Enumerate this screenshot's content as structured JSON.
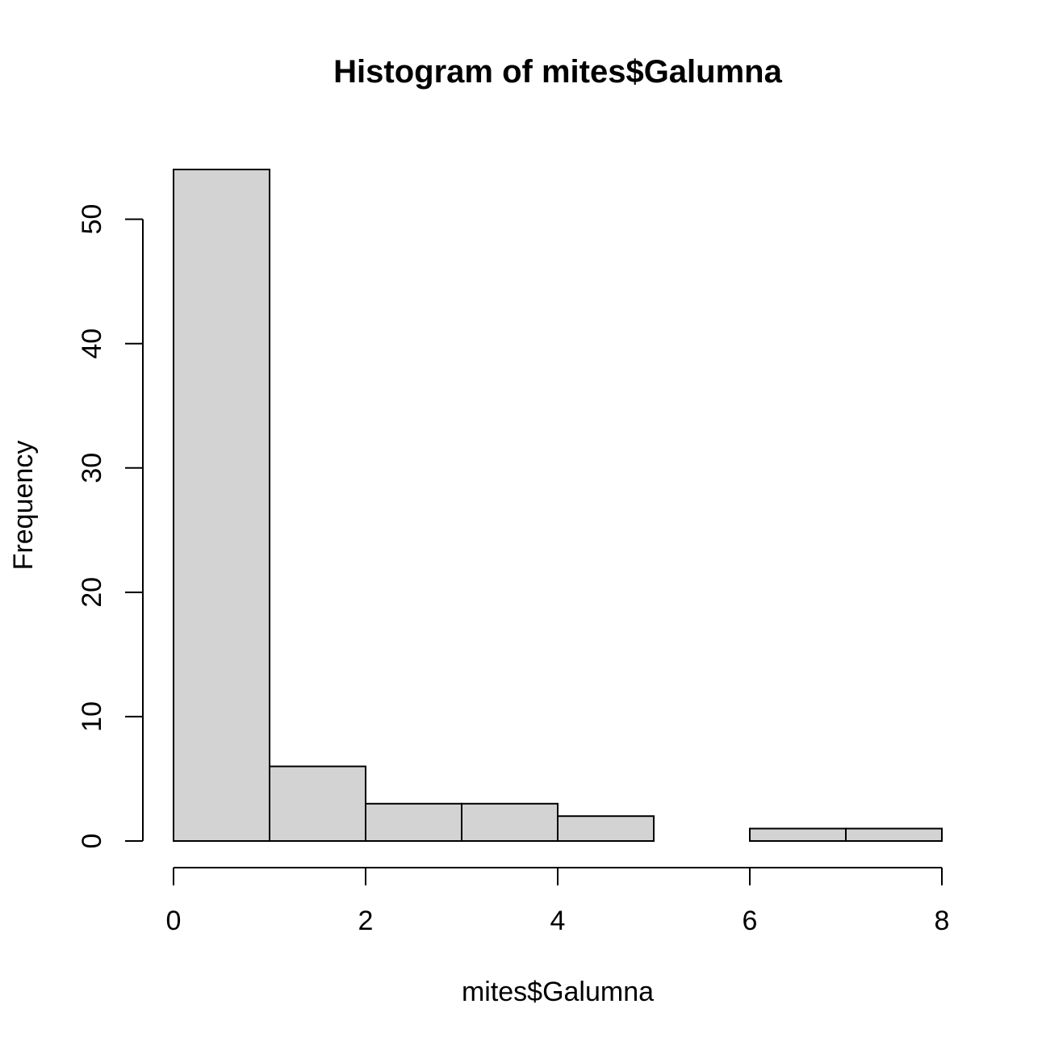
{
  "chart_data": {
    "type": "bar",
    "title": "Histogram of mites$Galumna",
    "xlabel": "mites$Galumna",
    "ylabel": "Frequency",
    "bins": [
      {
        "start": 0,
        "end": 1,
        "count": 54
      },
      {
        "start": 1,
        "end": 2,
        "count": 6
      },
      {
        "start": 2,
        "end": 3,
        "count": 3
      },
      {
        "start": 3,
        "end": 4,
        "count": 3
      },
      {
        "start": 4,
        "end": 5,
        "count": 2
      },
      {
        "start": 5,
        "end": 6,
        "count": 0
      },
      {
        "start": 6,
        "end": 7,
        "count": 1
      },
      {
        "start": 7,
        "end": 8,
        "count": 1
      }
    ],
    "xlim": [
      0,
      8
    ],
    "ylim": [
      0,
      54
    ],
    "xticks": [
      0,
      2,
      4,
      6,
      8
    ],
    "yticks": [
      0,
      10,
      20,
      30,
      40,
      50
    ],
    "bar_color": "#d3d3d3",
    "grid": false
  }
}
